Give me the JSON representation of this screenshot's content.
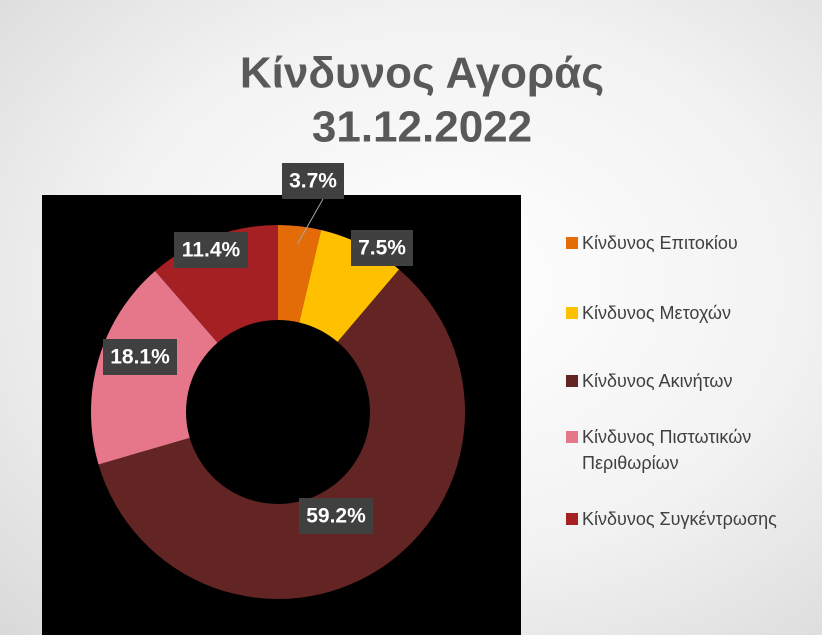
{
  "chart_data": {
    "type": "donut",
    "title": [
      "Κίνδυνος Αγοράς",
      "31.12.2022"
    ],
    "categories": [
      "Κίνδυνος Επιτοκίου",
      "Κίνδυνος Μετοχών",
      "Κίνδυνος Ακινήτων",
      "Κίνδυνος Πιστωτικών Περιθωρίων",
      "Κίνδυνος Συγκέντρωσης"
    ],
    "values": [
      3.7,
      7.5,
      59.2,
      18.1,
      11.4
    ],
    "value_labels": [
      "3.7%",
      "7.5%",
      "59.2%",
      "18.1%",
      "11.4%"
    ],
    "colors": [
      "#e36c09",
      "#ffc000",
      "#632523",
      "#e6768a",
      "#a52023"
    ],
    "legend": "right"
  }
}
